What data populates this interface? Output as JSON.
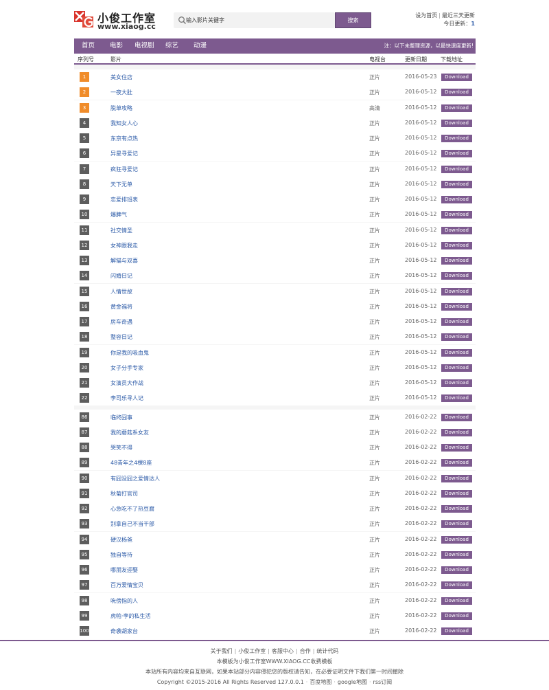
{
  "header": {
    "logo_cn": "小俊工作室",
    "logo_en": "www.xiaog.cc",
    "search_placeholder": "输入影片关键字",
    "search_button": "搜索",
    "set_home": "设为首页",
    "recent_update": "最近三天更新",
    "today_label": "今日更新：",
    "today_count": "1"
  },
  "nav": {
    "items": [
      "首页",
      "电影",
      "电视剧",
      "综艺",
      "动漫"
    ],
    "notice": "注：以下未整理资源，以最快速度更新!"
  },
  "columns": {
    "num": "序列号",
    "title": "影片",
    "quality": "电视台",
    "date": "更新日期",
    "download": "下载地址"
  },
  "download_label": "Download",
  "rows": [
    {
      "num": "1",
      "title": "美女住店",
      "quality": "正片",
      "date": "2016-05-23"
    },
    {
      "num": "2",
      "title": "一夜大肚",
      "quality": "正片",
      "date": "2016-05-12"
    },
    {
      "num": "3",
      "title": "脱单攻略",
      "quality": "高清",
      "date": "2016-05-12"
    },
    {
      "num": "4",
      "title": "我知女人心",
      "quality": "正片",
      "date": "2016-05-12"
    },
    {
      "num": "5",
      "title": "东京有点热",
      "quality": "正片",
      "date": "2016-05-12"
    },
    {
      "num": "6",
      "title": "异星寻爱记",
      "quality": "正片",
      "date": "2016-05-12"
    },
    {
      "num": "7",
      "title": "疯狂寻爱记",
      "quality": "正片",
      "date": "2016-05-12"
    },
    {
      "num": "8",
      "title": "天下无单",
      "quality": "正片",
      "date": "2016-05-12"
    },
    {
      "num": "9",
      "title": "恋爱排班表",
      "quality": "正片",
      "date": "2016-05-12"
    },
    {
      "num": "10",
      "title": "爆脾气",
      "quality": "正片",
      "date": "2016-05-12"
    },
    {
      "num": "11",
      "title": "社交情圣",
      "quality": "正片",
      "date": "2016-05-12"
    },
    {
      "num": "12",
      "title": "女神跟我走",
      "quality": "正片",
      "date": "2016-05-12"
    },
    {
      "num": "13",
      "title": "解猫与双喜",
      "quality": "正片",
      "date": "2016-05-12"
    },
    {
      "num": "14",
      "title": "闪婚日记",
      "quality": "正片",
      "date": "2016-05-12"
    },
    {
      "num": "15",
      "title": "人情世故",
      "quality": "正片",
      "date": "2016-05-12"
    },
    {
      "num": "16",
      "title": "黄金福将",
      "quality": "正片",
      "date": "2016-05-12"
    },
    {
      "num": "17",
      "title": "房车奇遇",
      "quality": "正片",
      "date": "2016-05-12"
    },
    {
      "num": "18",
      "title": "整容日记",
      "quality": "正片",
      "date": "2016-05-12"
    },
    {
      "num": "19",
      "title": "你是我的吸血鬼",
      "quality": "正片",
      "date": "2016-05-12"
    },
    {
      "num": "20",
      "title": "女子分手专家",
      "quality": "正片",
      "date": "2016-05-12"
    },
    {
      "num": "21",
      "title": "女演员大作战",
      "quality": "正片",
      "date": "2016-05-12"
    },
    {
      "num": "22",
      "title": "李司乐寻人记",
      "quality": "正片",
      "date": "2016-05-12"
    },
    {
      "num": "86",
      "title": "临终囧事",
      "quality": "正片",
      "date": "2016-02-22"
    },
    {
      "num": "87",
      "title": "我的蘑菇系女友",
      "quality": "正片",
      "date": "2016-02-22"
    },
    {
      "num": "88",
      "title": "哭笑不得",
      "quality": "正片",
      "date": "2016-02-22"
    },
    {
      "num": "89",
      "title": "48青年之4棵8座",
      "quality": "正片",
      "date": "2016-02-22"
    },
    {
      "num": "90",
      "title": "有囧没囧之爱情达人",
      "quality": "正片",
      "date": "2016-02-22"
    },
    {
      "num": "91",
      "title": "秋菊打官司",
      "quality": "正片",
      "date": "2016-02-22"
    },
    {
      "num": "92",
      "title": "心急吃不了热豆腐",
      "quality": "正片",
      "date": "2016-02-22"
    },
    {
      "num": "93",
      "title": "别拿自己不当干部",
      "quality": "正片",
      "date": "2016-02-22"
    },
    {
      "num": "94",
      "title": "硬汉杨爸",
      "quality": "正片",
      "date": "2016-02-22"
    },
    {
      "num": "95",
      "title": "独自等待",
      "quality": "正片",
      "date": "2016-02-22"
    },
    {
      "num": "96",
      "title": "哪朋友迎娶",
      "quality": "正片",
      "date": "2016-02-22"
    },
    {
      "num": "97",
      "title": "百万爱情宝贝",
      "quality": "正片",
      "date": "2016-02-22"
    },
    {
      "num": "98",
      "title": "吮傍指的人",
      "quality": "正片",
      "date": "2016-02-22"
    },
    {
      "num": "99",
      "title": "虎帕·李的私生活",
      "quality": "正片",
      "date": "2016-02-22"
    },
    {
      "num": "100",
      "title": "奇袭胡家台",
      "quality": "正片",
      "date": "2016-02-22"
    }
  ],
  "footer": {
    "links": [
      "关于我们",
      "小俊工作室",
      "客服中心",
      "合作",
      "统计代码"
    ],
    "line2": "本模板为小俊工作室WWW.XIAOG.CC收费模板",
    "line3": "本站所有内容均来自互联网，如果本站部分内容侵犯您的版权请告知，在必要证明文件下我们第一时间撤除",
    "copyright": "Copyright ©2015-2016 All Rights Reserved 127.0.0.1",
    "extra_links": [
      "百度地图",
      "google地图",
      "rss订阅"
    ]
  },
  "colors": {
    "accent": "#7d5a8f",
    "hot": "#f08c2a",
    "num_bg": "#5d5d5d",
    "link": "#2b5aa7"
  }
}
